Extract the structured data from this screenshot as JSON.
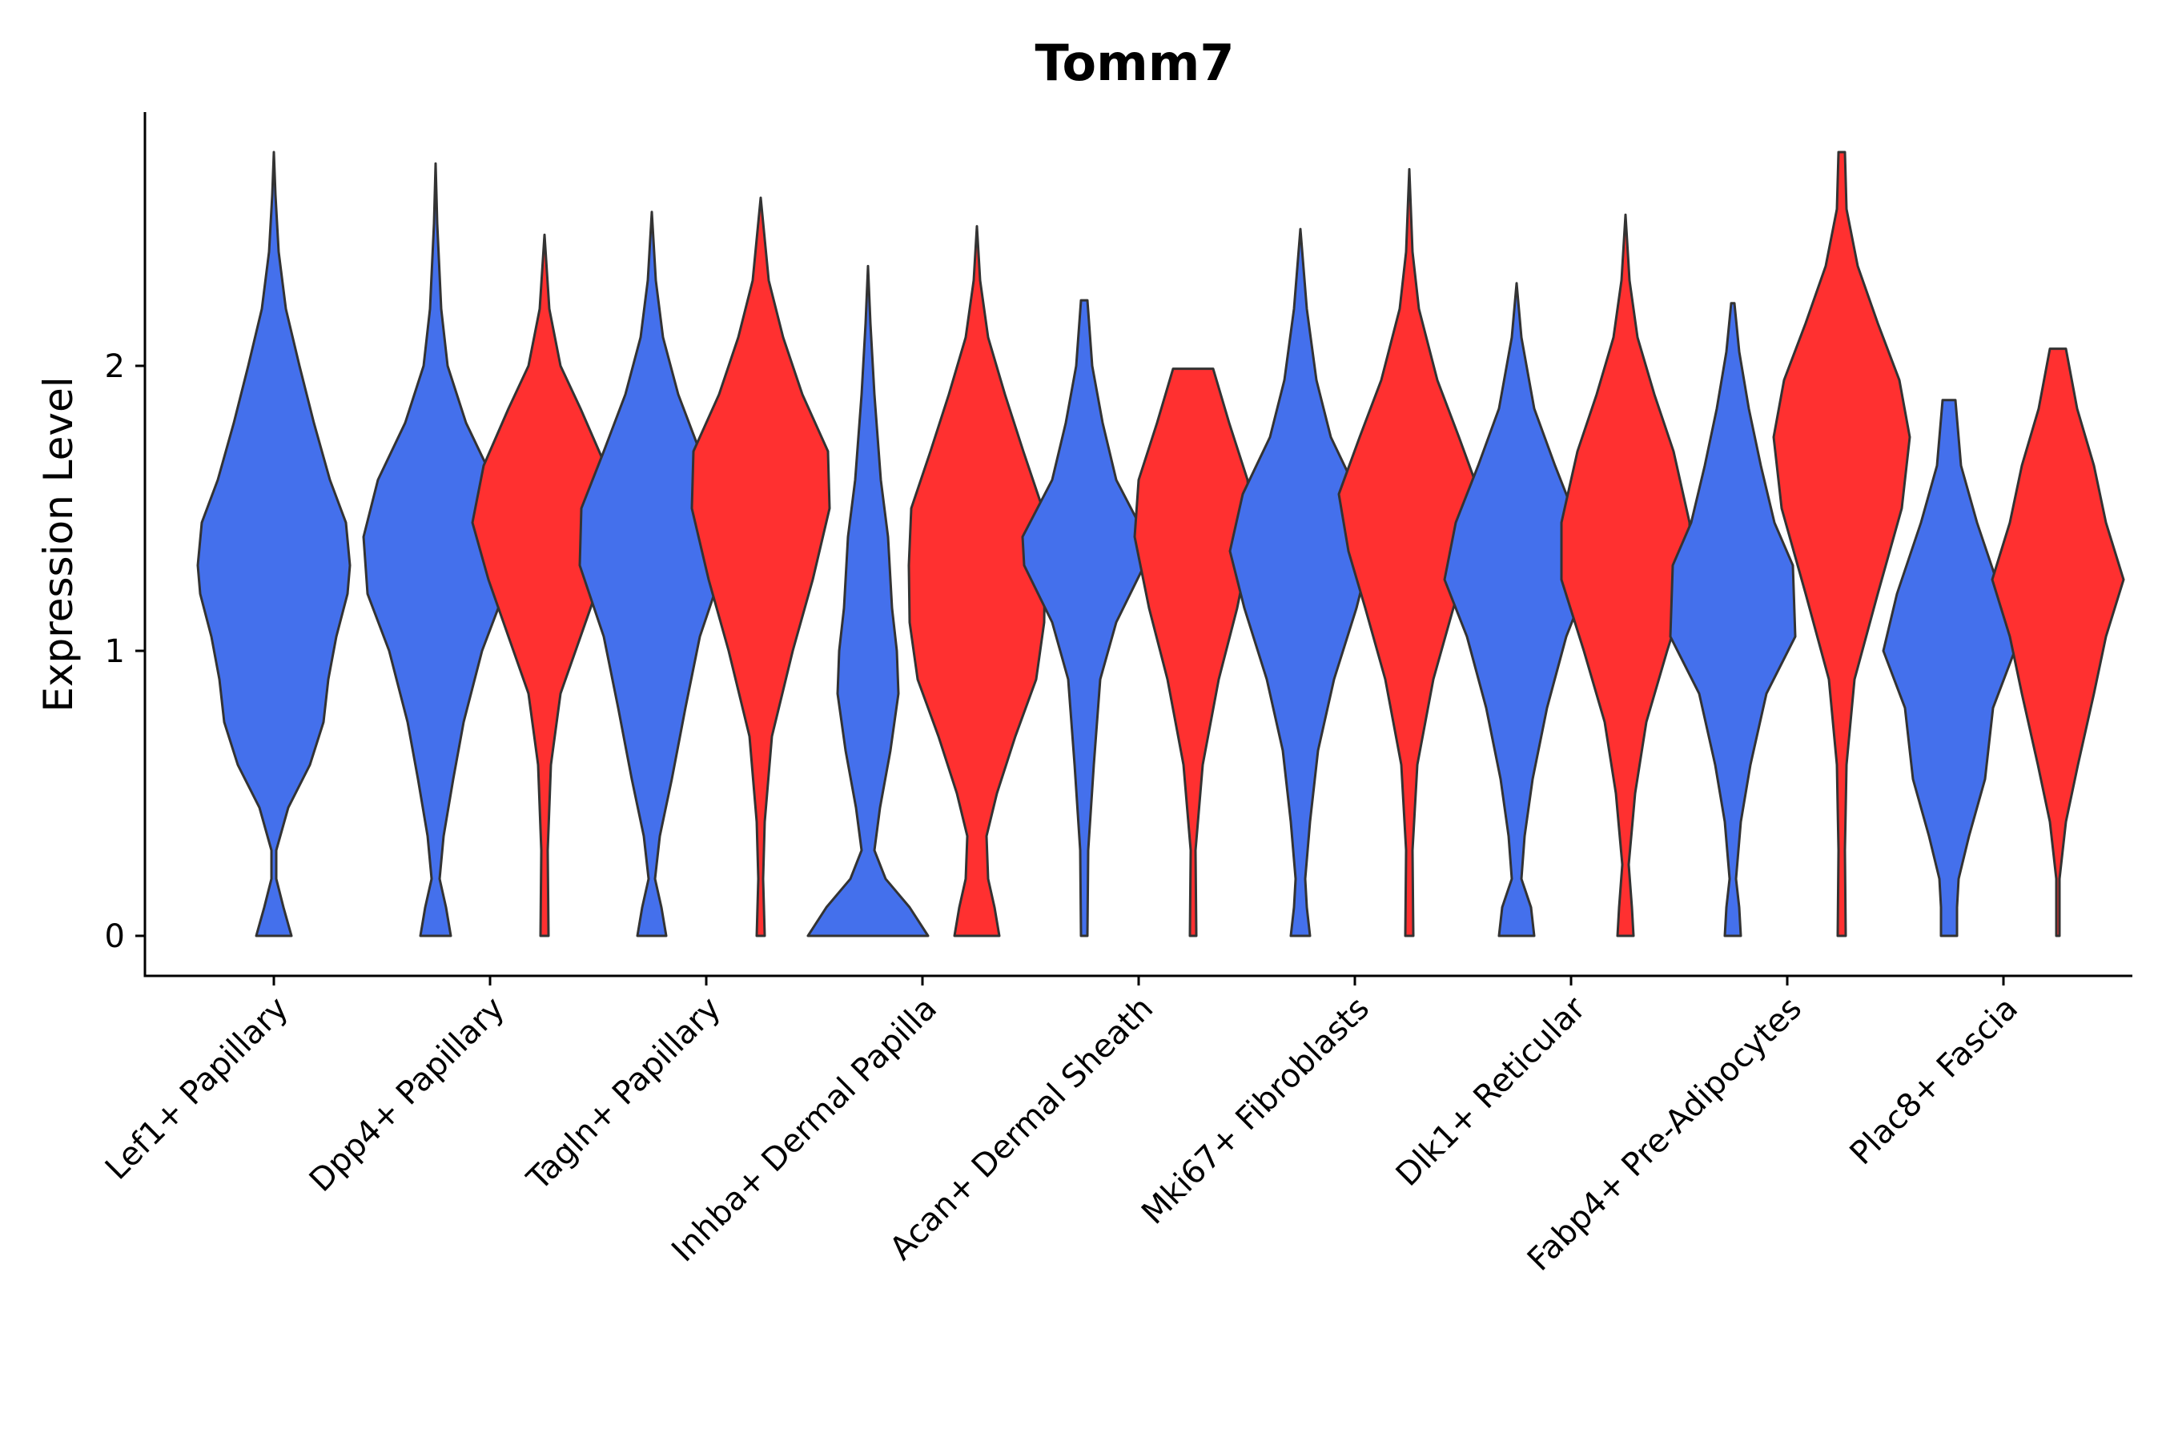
{
  "chart_data": {
    "type": "violin",
    "title": "Tomm7",
    "xlabel": "",
    "ylabel": "Expression Level",
    "ylim": [
      -0.14,
      2.86
    ],
    "yticks": [
      0,
      1,
      2
    ],
    "colors": {
      "groupA": "#4470EC",
      "groupB": "#FF3030",
      "outline": "#333333"
    },
    "categories": [
      "Lef1+ Papillary",
      "Dpp4+ Papillary",
      "Tagln+ Papillary",
      "Inhba+ Dermal Papilla",
      "Acan+ Dermal Sheath",
      "Mki67+ Fibroblasts",
      "Dlk1+ Reticular",
      "Fabp4+ Pre-Adipocytes",
      "Plac8+ Fascia"
    ],
    "violins": [
      {
        "category": 0,
        "group": "groupA",
        "ymax": 2.75,
        "profile": [
          [
            0,
            0.22
          ],
          [
            0.1,
            0.12
          ],
          [
            0.2,
            0.03
          ],
          [
            0.3,
            0.03
          ],
          [
            0.45,
            0.18
          ],
          [
            0.6,
            0.45
          ],
          [
            0.75,
            0.62
          ],
          [
            0.9,
            0.68
          ],
          [
            1.05,
            0.78
          ],
          [
            1.2,
            0.92
          ],
          [
            1.3,
            0.95
          ],
          [
            1.45,
            0.9
          ],
          [
            1.6,
            0.7
          ],
          [
            1.8,
            0.5
          ],
          [
            2.0,
            0.32
          ],
          [
            2.2,
            0.15
          ],
          [
            2.4,
            0.06
          ],
          [
            2.6,
            0.02
          ],
          [
            2.75,
            0.0
          ]
        ]
      },
      {
        "category": 1,
        "group": "groupA",
        "ymax": 2.71,
        "profile": [
          [
            0,
            0.19
          ],
          [
            0.1,
            0.13
          ],
          [
            0.2,
            0.05
          ],
          [
            0.35,
            0.1
          ],
          [
            0.55,
            0.22
          ],
          [
            0.75,
            0.35
          ],
          [
            1.0,
            0.58
          ],
          [
            1.2,
            0.85
          ],
          [
            1.4,
            0.9
          ],
          [
            1.6,
            0.72
          ],
          [
            1.8,
            0.38
          ],
          [
            2.0,
            0.15
          ],
          [
            2.2,
            0.07
          ],
          [
            2.5,
            0.02
          ],
          [
            2.71,
            0.0
          ]
        ]
      },
      {
        "category": 1,
        "group": "groupB",
        "ymax": 2.46,
        "profile": [
          [
            0,
            0.05
          ],
          [
            0.3,
            0.04
          ],
          [
            0.6,
            0.08
          ],
          [
            0.85,
            0.2
          ],
          [
            1.05,
            0.45
          ],
          [
            1.25,
            0.7
          ],
          [
            1.45,
            0.9
          ],
          [
            1.65,
            0.76
          ],
          [
            1.85,
            0.45
          ],
          [
            2.0,
            0.2
          ],
          [
            2.2,
            0.06
          ],
          [
            2.46,
            0.0
          ]
        ]
      },
      {
        "category": 2,
        "group": "groupA",
        "ymax": 2.54,
        "profile": [
          [
            0,
            0.18
          ],
          [
            0.1,
            0.12
          ],
          [
            0.2,
            0.04
          ],
          [
            0.35,
            0.1
          ],
          [
            0.55,
            0.25
          ],
          [
            0.8,
            0.42
          ],
          [
            1.05,
            0.6
          ],
          [
            1.3,
            0.9
          ],
          [
            1.5,
            0.88
          ],
          [
            1.7,
            0.6
          ],
          [
            1.9,
            0.33
          ],
          [
            2.1,
            0.14
          ],
          [
            2.3,
            0.05
          ],
          [
            2.54,
            0.0
          ]
        ]
      },
      {
        "category": 2,
        "group": "groupB",
        "ymax": 2.59,
        "profile": [
          [
            0,
            0.05
          ],
          [
            0.2,
            0.03
          ],
          [
            0.4,
            0.05
          ],
          [
            0.7,
            0.14
          ],
          [
            1.0,
            0.4
          ],
          [
            1.25,
            0.65
          ],
          [
            1.5,
            0.86
          ],
          [
            1.7,
            0.84
          ],
          [
            1.9,
            0.52
          ],
          [
            2.1,
            0.28
          ],
          [
            2.3,
            0.1
          ],
          [
            2.59,
            0.0
          ]
        ]
      },
      {
        "category": 3,
        "group": "groupA",
        "ymax": 2.35,
        "profile": [
          [
            0,
            0.75
          ],
          [
            0.1,
            0.52
          ],
          [
            0.2,
            0.22
          ],
          [
            0.3,
            0.08
          ],
          [
            0.45,
            0.15
          ],
          [
            0.65,
            0.28
          ],
          [
            0.85,
            0.38
          ],
          [
            1.0,
            0.36
          ],
          [
            1.15,
            0.3
          ],
          [
            1.4,
            0.25
          ],
          [
            1.6,
            0.16
          ],
          [
            1.9,
            0.08
          ],
          [
            2.15,
            0.03
          ],
          [
            2.35,
            0.0
          ]
        ]
      },
      {
        "category": 3,
        "group": "groupB",
        "ymax": 2.49,
        "profile": [
          [
            0,
            0.28
          ],
          [
            0.1,
            0.22
          ],
          [
            0.2,
            0.14
          ],
          [
            0.35,
            0.12
          ],
          [
            0.5,
            0.25
          ],
          [
            0.7,
            0.48
          ],
          [
            0.9,
            0.74
          ],
          [
            1.1,
            0.84
          ],
          [
            1.3,
            0.85
          ],
          [
            1.5,
            0.82
          ],
          [
            1.7,
            0.58
          ],
          [
            1.9,
            0.35
          ],
          [
            2.1,
            0.14
          ],
          [
            2.3,
            0.04
          ],
          [
            2.49,
            0.0
          ]
        ]
      },
      {
        "category": 4,
        "group": "groupA",
        "ymax": 2.23,
        "profile": [
          [
            0,
            0.04
          ],
          [
            0.3,
            0.05
          ],
          [
            0.6,
            0.12
          ],
          [
            0.9,
            0.2
          ],
          [
            1.1,
            0.4
          ],
          [
            1.3,
            0.75
          ],
          [
            1.4,
            0.77
          ],
          [
            1.6,
            0.4
          ],
          [
            1.8,
            0.23
          ],
          [
            2.0,
            0.1
          ],
          [
            2.23,
            0.04
          ]
        ]
      },
      {
        "category": 4,
        "group": "groupB",
        "ymax": 1.99,
        "profile": [
          [
            0,
            0.04
          ],
          [
            0.3,
            0.03
          ],
          [
            0.6,
            0.12
          ],
          [
            0.9,
            0.32
          ],
          [
            1.15,
            0.55
          ],
          [
            1.4,
            0.73
          ],
          [
            1.6,
            0.68
          ],
          [
            1.8,
            0.45
          ],
          [
            1.99,
            0.25
          ]
        ]
      },
      {
        "category": 5,
        "group": "groupA",
        "ymax": 2.48,
        "profile": [
          [
            0,
            0.12
          ],
          [
            0.1,
            0.08
          ],
          [
            0.2,
            0.06
          ],
          [
            0.4,
            0.12
          ],
          [
            0.65,
            0.22
          ],
          [
            0.9,
            0.42
          ],
          [
            1.15,
            0.7
          ],
          [
            1.35,
            0.88
          ],
          [
            1.55,
            0.72
          ],
          [
            1.75,
            0.38
          ],
          [
            1.95,
            0.2
          ],
          [
            2.2,
            0.08
          ],
          [
            2.48,
            0.0
          ]
        ]
      },
      {
        "category": 5,
        "group": "groupB",
        "ymax": 2.69,
        "profile": [
          [
            0,
            0.05
          ],
          [
            0.3,
            0.04
          ],
          [
            0.6,
            0.1
          ],
          [
            0.9,
            0.3
          ],
          [
            1.15,
            0.55
          ],
          [
            1.35,
            0.76
          ],
          [
            1.55,
            0.88
          ],
          [
            1.75,
            0.62
          ],
          [
            1.95,
            0.35
          ],
          [
            2.2,
            0.12
          ],
          [
            2.4,
            0.04
          ],
          [
            2.69,
            0.0
          ]
        ]
      },
      {
        "category": 6,
        "group": "groupA",
        "ymax": 2.29,
        "profile": [
          [
            0,
            0.22
          ],
          [
            0.1,
            0.18
          ],
          [
            0.2,
            0.06
          ],
          [
            0.35,
            0.1
          ],
          [
            0.55,
            0.2
          ],
          [
            0.8,
            0.38
          ],
          [
            1.05,
            0.62
          ],
          [
            1.25,
            0.9
          ],
          [
            1.45,
            0.76
          ],
          [
            1.65,
            0.48
          ],
          [
            1.85,
            0.22
          ],
          [
            2.1,
            0.06
          ],
          [
            2.29,
            0.0
          ]
        ]
      },
      {
        "category": 6,
        "group": "groupB",
        "ymax": 2.53,
        "profile": [
          [
            0,
            0.1
          ],
          [
            0.1,
            0.08
          ],
          [
            0.25,
            0.04
          ],
          [
            0.5,
            0.12
          ],
          [
            0.75,
            0.26
          ],
          [
            1.0,
            0.52
          ],
          [
            1.25,
            0.8
          ],
          [
            1.45,
            0.8
          ],
          [
            1.7,
            0.6
          ],
          [
            1.9,
            0.36
          ],
          [
            2.1,
            0.15
          ],
          [
            2.3,
            0.05
          ],
          [
            2.53,
            0.0
          ]
        ]
      },
      {
        "category": 7,
        "group": "groupA",
        "ymax": 2.22,
        "profile": [
          [
            0,
            0.1
          ],
          [
            0.1,
            0.08
          ],
          [
            0.2,
            0.04
          ],
          [
            0.4,
            0.1
          ],
          [
            0.6,
            0.22
          ],
          [
            0.85,
            0.42
          ],
          [
            1.05,
            0.78
          ],
          [
            1.3,
            0.75
          ],
          [
            1.45,
            0.52
          ],
          [
            1.65,
            0.35
          ],
          [
            1.85,
            0.2
          ],
          [
            2.05,
            0.08
          ],
          [
            2.22,
            0.02
          ]
        ]
      },
      {
        "category": 7,
        "group": "groupB",
        "ymax": 2.75,
        "profile": [
          [
            0,
            0.05
          ],
          [
            0.3,
            0.04
          ],
          [
            0.6,
            0.06
          ],
          [
            0.9,
            0.16
          ],
          [
            1.2,
            0.45
          ],
          [
            1.5,
            0.75
          ],
          [
            1.75,
            0.85
          ],
          [
            1.95,
            0.72
          ],
          [
            2.15,
            0.45
          ],
          [
            2.35,
            0.2
          ],
          [
            2.55,
            0.06
          ],
          [
            2.75,
            0.04
          ]
        ]
      },
      {
        "category": 8,
        "group": "groupA",
        "ymax": 1.88,
        "profile": [
          [
            0,
            0.1
          ],
          [
            0.1,
            0.1
          ],
          [
            0.2,
            0.12
          ],
          [
            0.35,
            0.25
          ],
          [
            0.55,
            0.45
          ],
          [
            0.8,
            0.55
          ],
          [
            1.0,
            0.82
          ],
          [
            1.2,
            0.65
          ],
          [
            1.45,
            0.35
          ],
          [
            1.65,
            0.15
          ],
          [
            1.88,
            0.08
          ]
        ]
      },
      {
        "category": 8,
        "group": "groupB",
        "ymax": 2.06,
        "profile": [
          [
            0,
            0.02
          ],
          [
            0.2,
            0.02
          ],
          [
            0.4,
            0.1
          ],
          [
            0.6,
            0.25
          ],
          [
            0.85,
            0.45
          ],
          [
            1.05,
            0.6
          ],
          [
            1.25,
            0.82
          ],
          [
            1.45,
            0.6
          ],
          [
            1.65,
            0.45
          ],
          [
            1.85,
            0.24
          ],
          [
            2.06,
            0.1
          ]
        ]
      }
    ]
  }
}
